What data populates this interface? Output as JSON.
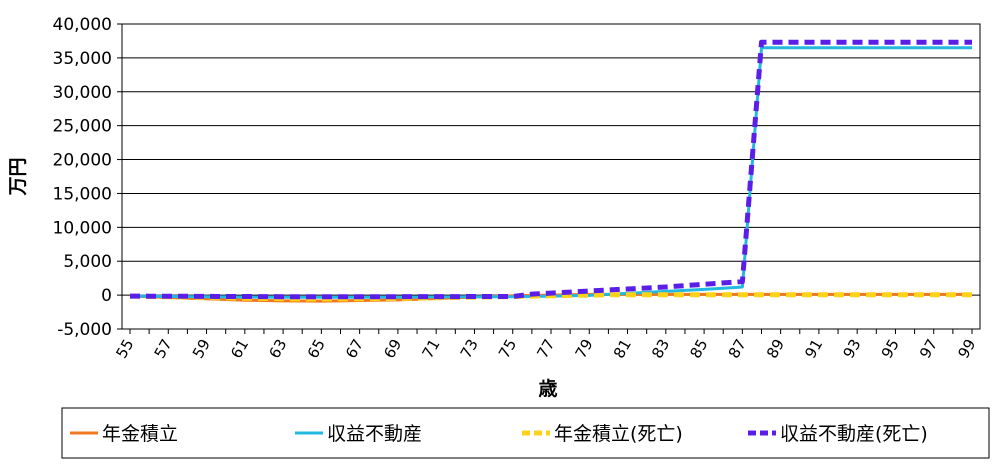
{
  "chart_data": {
    "type": "line",
    "xlabel": "歳",
    "ylabel": "万円",
    "ylim": [
      -5000,
      40000
    ],
    "yticks": [
      -5000,
      0,
      5000,
      10000,
      15000,
      20000,
      25000,
      30000,
      35000,
      40000
    ],
    "ytick_labels": [
      "-5,000",
      "0",
      "5,000",
      "10,000",
      "15,000",
      "20,000",
      "25,000",
      "30,000",
      "35,000",
      "40,000"
    ],
    "x": [
      55,
      56,
      57,
      58,
      59,
      60,
      61,
      62,
      63,
      64,
      65,
      66,
      67,
      68,
      69,
      70,
      71,
      72,
      73,
      74,
      75,
      76,
      77,
      78,
      79,
      80,
      81,
      82,
      83,
      84,
      85,
      86,
      87,
      88,
      89,
      90,
      91,
      92,
      93,
      94,
      95,
      96,
      97,
      98,
      99
    ],
    "xtick_labels": [
      "55",
      "57",
      "59",
      "61",
      "63",
      "65",
      "67",
      "69",
      "71",
      "73",
      "75",
      "77",
      "79",
      "81",
      "83",
      "85",
      "87",
      "89",
      "91",
      "93",
      "95",
      "97",
      "99"
    ],
    "grid": true,
    "legend_position": "bottom",
    "series": [
      {
        "name": "年金積立",
        "color": "#f07820",
        "style": "solid",
        "values": [
          -150,
          -250,
          -350,
          -450,
          -550,
          -650,
          -750,
          -800,
          -850,
          -870,
          -880,
          -850,
          -800,
          -750,
          -700,
          -600,
          -500,
          -400,
          -300,
          -200,
          -100,
          -50,
          0,
          50,
          100,
          100,
          100,
          100,
          100,
          100,
          100,
          100,
          100,
          100,
          100,
          100,
          100,
          100,
          100,
          100,
          100,
          100,
          100,
          100,
          100
        ]
      },
      {
        "name": "収益不動産",
        "color": "#22b8e0",
        "style": "solid",
        "values": [
          -150,
          -180,
          -200,
          -220,
          -240,
          -260,
          -280,
          -300,
          -310,
          -320,
          -330,
          -320,
          -310,
          -300,
          -290,
          -280,
          -270,
          -260,
          -250,
          -240,
          -230,
          -200,
          -150,
          -100,
          -50,
          100,
          250,
          400,
          550,
          700,
          850,
          1000,
          1200,
          36500,
          36500,
          36500,
          36500,
          36500,
          36500,
          36500,
          36500,
          36500,
          36500,
          36500,
          36500
        ]
      },
      {
        "name": "年金積立(死亡)",
        "color": "#ffd21a",
        "style": "dashed",
        "values": [
          -150,
          -200,
          -250,
          -300,
          -350,
          -400,
          -450,
          -500,
          -550,
          -570,
          -580,
          -560,
          -540,
          -520,
          -500,
          -450,
          -400,
          -350,
          -300,
          -250,
          -200,
          -150,
          -100,
          -50,
          0,
          50,
          50,
          50,
          50,
          50,
          50,
          50,
          50,
          50,
          50,
          50,
          50,
          50,
          50,
          50,
          50,
          50,
          50,
          50,
          50
        ]
      },
      {
        "name": "収益不動産(死亡)",
        "color": "#5a1ee8",
        "style": "dashed",
        "values": [
          -150,
          -160,
          -170,
          -180,
          -190,
          -200,
          -210,
          -220,
          -230,
          -240,
          -250,
          -245,
          -240,
          -235,
          -230,
          -225,
          -220,
          -215,
          -210,
          -205,
          -200,
          150,
          300,
          450,
          600,
          750,
          900,
          1050,
          1200,
          1400,
          1600,
          1800,
          2000,
          37300,
          37300,
          37300,
          37300,
          37300,
          37300,
          37300,
          37300,
          37300,
          37300,
          37300,
          37300
        ]
      }
    ]
  }
}
